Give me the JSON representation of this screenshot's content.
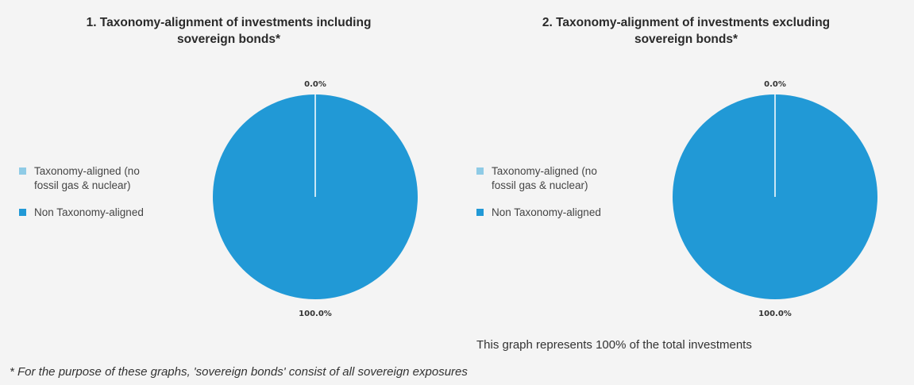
{
  "chart_data": [
    {
      "type": "pie",
      "title": "1. Taxonomy-alignment of investments including sovereign bonds*",
      "title_lines": [
        "1. Taxonomy-alignment of investments including",
        "sovereign bonds*"
      ],
      "slices": [
        {
          "label": "Taxonomy-aligned (no fossil gas & nuclear)",
          "value": 0.0,
          "display": "0.0%",
          "color": "#8fcbe6"
        },
        {
          "label": "Non Taxonomy-aligned",
          "value": 100.0,
          "display": "100.0%",
          "color": "#2199d6"
        }
      ],
      "legend_placement": "left"
    },
    {
      "type": "pie",
      "title": "2. Taxonomy-alignment of investments excluding sovereign bonds*",
      "title_lines": [
        "2. Taxonomy-alignment of investments excluding",
        "sovereign bonds*"
      ],
      "slices": [
        {
          "label": "Taxonomy-aligned (no fossil gas & nuclear)",
          "value": 0.0,
          "display": "0.0%",
          "color": "#8fcbe6"
        },
        {
          "label": "Non Taxonomy-aligned",
          "value": 100.0,
          "display": "100.0%",
          "color": "#2199d6"
        }
      ],
      "legend_placement": "left"
    }
  ],
  "legend": {
    "item1_lines": [
      "Taxonomy-aligned (no",
      "fossil gas & nuclear)"
    ],
    "item2": "Non Taxonomy-aligned"
  },
  "note": "This graph represents 100% of the total investments",
  "footnote": "* For the purpose of these graphs, 'sovereign bonds' consist of all sovereign exposures"
}
